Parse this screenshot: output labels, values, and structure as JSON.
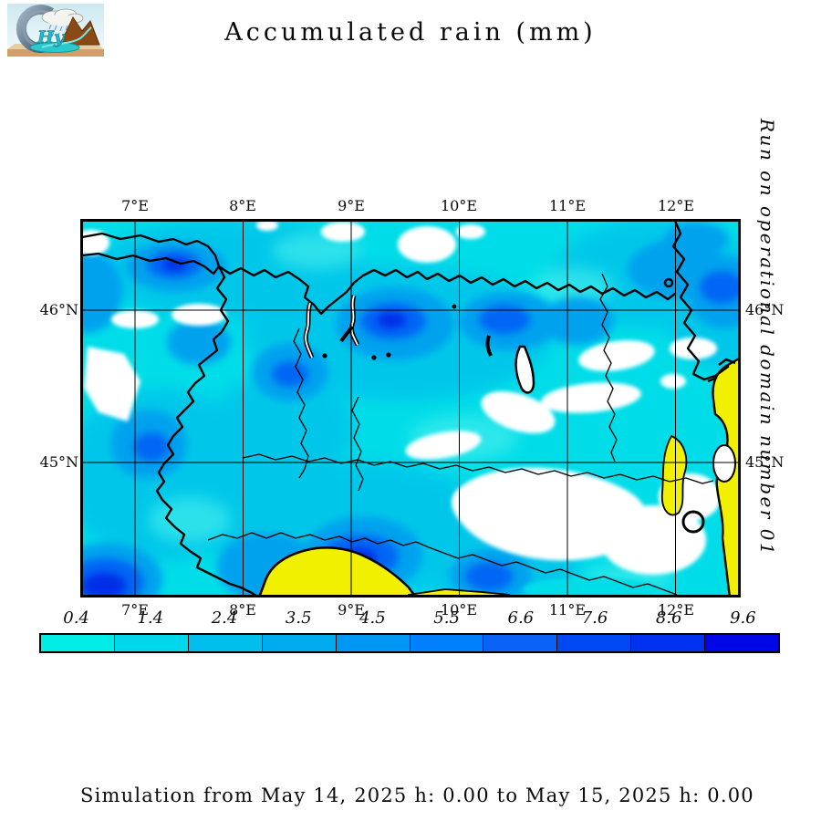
{
  "title": "Accumulated rain (mm)",
  "side_note": "Run on operational domain number 01",
  "footer": "Simulation from May 14, 2025 h: 0.00 to May 15, 2025 h: 0.00",
  "logo": {
    "hy_letters": "Hy"
  },
  "map": {
    "x_ticks": [
      "7°E",
      "8°E",
      "9°E",
      "10°E",
      "11°E",
      "12°E"
    ],
    "y_ticks_left": [
      "46°N",
      "45°N"
    ],
    "y_ticks_right": [
      "46°N",
      "45°N"
    ]
  },
  "colorbar": {
    "labels": [
      "0.4",
      "1.4",
      "2.4",
      "3.5",
      "4.5",
      "5.5",
      "6.6",
      "7.6",
      "8.6",
      "9.6"
    ],
    "colors": [
      "#00EDE6",
      "#00D7EA",
      "#00BFEC",
      "#00ABEE",
      "#0096F3",
      "#0080FB",
      "#0A62F6",
      "#0049F2",
      "#0031EE",
      "#0006E6"
    ]
  }
}
